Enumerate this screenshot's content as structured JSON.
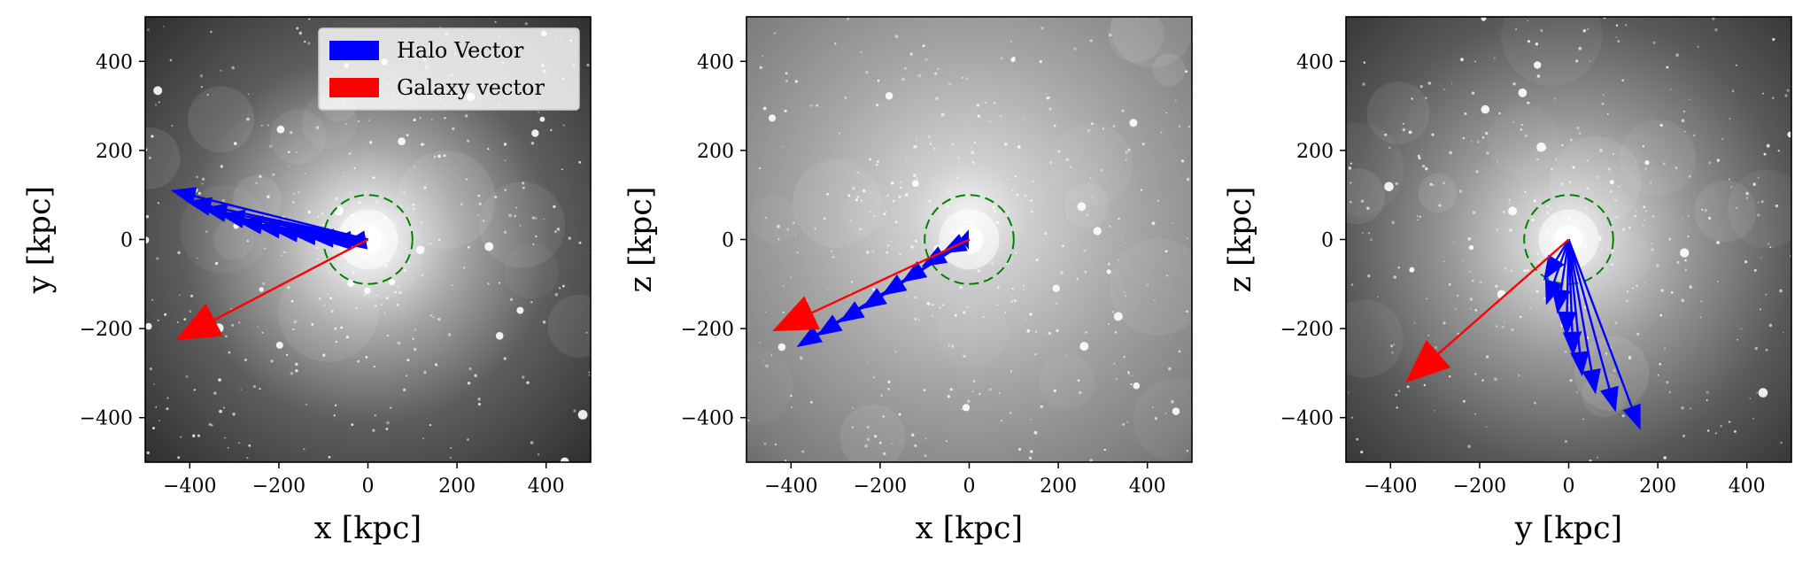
{
  "legend": [
    {
      "label": "Halo Vector",
      "color": "#0000ff"
    },
    {
      "label": "Galaxy vector",
      "color": "#ff0000"
    }
  ],
  "chart_data": [
    {
      "type": "quiver",
      "xlabel": "x [kpc]",
      "ylabel": "y [kpc]",
      "xlim": [
        -500,
        500
      ],
      "ylim": [
        -500,
        500
      ],
      "xticks": [
        -400,
        -200,
        0,
        200,
        400
      ],
      "yticks": [
        -400,
        -200,
        0,
        200,
        400
      ],
      "background": "grayscale dark-matter density projection",
      "circle": {
        "center": [
          0,
          0
        ],
        "radius": 100,
        "color": "#008000",
        "style": "dashed"
      },
      "galaxy_vector": {
        "from": [
          0,
          0
        ],
        "to": [
          -430,
          -225
        ],
        "color": "#ff0000"
      },
      "halo_vectors": [
        {
          "from": [
            0,
            0
          ],
          "to": [
            -440,
            110
          ]
        },
        {
          "from": [
            0,
            0
          ],
          "to": [
            -405,
            85
          ]
        },
        {
          "from": [
            0,
            0
          ],
          "to": [
            -370,
            70
          ]
        },
        {
          "from": [
            0,
            0
          ],
          "to": [
            -330,
            55
          ]
        },
        {
          "from": [
            0,
            0
          ],
          "to": [
            -290,
            40
          ]
        },
        {
          "from": [
            0,
            0
          ],
          "to": [
            -250,
            30
          ]
        },
        {
          "from": [
            0,
            0
          ],
          "to": [
            -210,
            20
          ]
        },
        {
          "from": [
            0,
            0
          ],
          "to": [
            -170,
            12
          ]
        },
        {
          "from": [
            0,
            0
          ],
          "to": [
            -130,
            5
          ]
        },
        {
          "from": [
            0,
            0
          ],
          "to": [
            -90,
            -5
          ]
        },
        {
          "from": [
            0,
            0
          ],
          "to": [
            -55,
            -10
          ]
        }
      ],
      "halo_color": "#0000ff",
      "legend_position": "top-right"
    },
    {
      "type": "quiver",
      "xlabel": "x [kpc]",
      "ylabel": "z [kpc]",
      "xlim": [
        -500,
        500
      ],
      "ylim": [
        -500,
        500
      ],
      "xticks": [
        -400,
        -200,
        0,
        200,
        400
      ],
      "yticks": [
        -400,
        -200,
        0,
        200,
        400
      ],
      "background": "grayscale dark-matter density projection",
      "circle": {
        "center": [
          0,
          0
        ],
        "radius": 100,
        "color": "#008000",
        "style": "dashed"
      },
      "galaxy_vector": {
        "from": [
          0,
          0
        ],
        "to": [
          -440,
          -205
        ],
        "color": "#ff0000"
      },
      "halo_vectors": [
        {
          "from": [
            0,
            0
          ],
          "to": [
            -385,
            -240
          ]
        },
        {
          "from": [
            0,
            0
          ],
          "to": [
            -340,
            -215
          ]
        },
        {
          "from": [
            0,
            0
          ],
          "to": [
            -290,
            -185
          ]
        },
        {
          "from": [
            0,
            0
          ],
          "to": [
            -240,
            -155
          ]
        },
        {
          "from": [
            0,
            0
          ],
          "to": [
            -195,
            -125
          ]
        },
        {
          "from": [
            0,
            0
          ],
          "to": [
            -150,
            -95
          ]
        },
        {
          "from": [
            0,
            0
          ],
          "to": [
            -105,
            -60
          ]
        },
        {
          "from": [
            0,
            0
          ],
          "to": [
            -60,
            -30
          ]
        },
        {
          "from": [
            0,
            0
          ],
          "to": [
            -20,
            0
          ]
        }
      ],
      "halo_color": "#0000ff"
    },
    {
      "type": "quiver",
      "xlabel": "y [kpc]",
      "ylabel": "z [kpc]",
      "xlim": [
        -500,
        500
      ],
      "ylim": [
        -500,
        500
      ],
      "xticks": [
        -400,
        -200,
        0,
        200,
        400
      ],
      "yticks": [
        -400,
        -200,
        0,
        200,
        400
      ],
      "background": "grayscale dark-matter density projection",
      "circle": {
        "center": [
          0,
          0
        ],
        "radius": 100,
        "color": "#008000",
        "style": "dashed"
      },
      "galaxy_vector": {
        "from": [
          0,
          0
        ],
        "to": [
          -365,
          -320
        ],
        "color": "#ff0000"
      },
      "halo_vectors": [
        {
          "from": [
            0,
            0
          ],
          "to": [
            160,
            -425
          ]
        },
        {
          "from": [
            0,
            0
          ],
          "to": [
            105,
            -385
          ]
        },
        {
          "from": [
            0,
            0
          ],
          "to": [
            60,
            -345
          ]
        },
        {
          "from": [
            0,
            0
          ],
          "to": [
            30,
            -305
          ]
        },
        {
          "from": [
            0,
            0
          ],
          "to": [
            10,
            -260
          ]
        },
        {
          "from": [
            0,
            0
          ],
          "to": [
            -5,
            -215
          ]
        },
        {
          "from": [
            0,
            0
          ],
          "to": [
            -25,
            -165
          ]
        },
        {
          "from": [
            0,
            0
          ],
          "to": [
            -50,
            -145
          ]
        },
        {
          "from": [
            0,
            0
          ],
          "to": [
            -55,
            -90
          ]
        }
      ],
      "halo_color": "#0000ff"
    }
  ]
}
